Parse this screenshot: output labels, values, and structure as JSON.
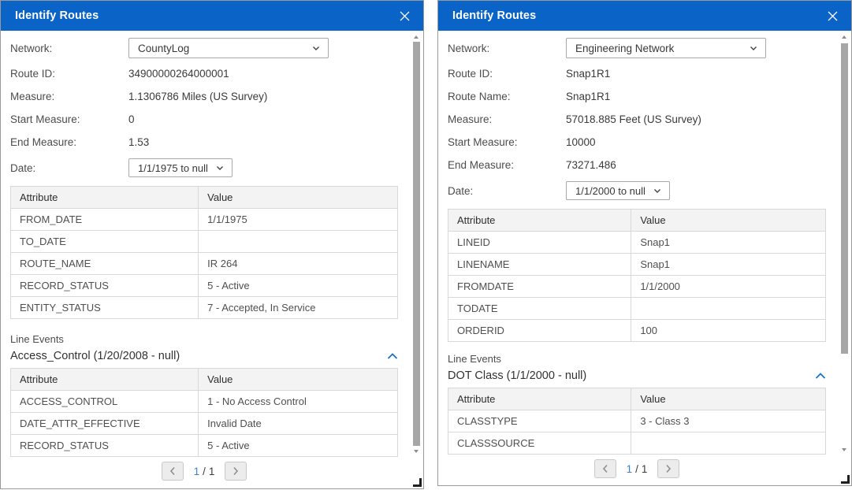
{
  "colors": {
    "titlebar_bg": "#0a64c8",
    "titlebar_text": "#ffffff",
    "accent_blue": "#1673c8",
    "page_current_blue": "#3b82d6",
    "label_text": "#4c4c4c",
    "table_header_bg": "#f3f3f3",
    "table_border": "#d8d8d8",
    "panel_border": "#9a9a9a",
    "scrollbar_thumb": "#a6a6a6"
  },
  "icons": {
    "close": "x",
    "chevron_down": "v-chevron",
    "chevron_up": "^-chevron",
    "chevron_left": "<-chevron",
    "chevron_right": ">-chevron",
    "resize_grip": "corner-L",
    "scroll_up": "small-triangle-up",
    "scroll_down": "small-triangle-down"
  },
  "panels": [
    {
      "title": "Identify Routes",
      "fields": [
        {
          "name": "network",
          "label": "Network:",
          "value": "CountyLog",
          "control": "select"
        },
        {
          "name": "route-id",
          "label": "Route ID:",
          "value": "34900000264000001"
        },
        {
          "name": "measure",
          "label": "Measure:",
          "value": "1.1306786 Miles (US Survey)"
        },
        {
          "name": "start-measure",
          "label": "Start Measure:",
          "value": "0"
        },
        {
          "name": "end-measure",
          "label": "End Measure:",
          "value": "1.53"
        },
        {
          "name": "date",
          "label": "Date:",
          "value": "1/1/1975 to null",
          "control": "select-small"
        }
      ],
      "route_table": {
        "headers": [
          "Attribute",
          "Value"
        ],
        "rows": [
          [
            "FROM_DATE",
            "1/1/1975"
          ],
          [
            "TO_DATE",
            ""
          ],
          [
            "ROUTE_NAME",
            "IR 264"
          ],
          [
            "RECORD_STATUS",
            "5 - Active"
          ],
          [
            "ENTITY_STATUS",
            "7 - Accepted, In Service"
          ]
        ]
      },
      "line_events": {
        "label": "Line Events",
        "section_title": "Access_Control (1/20/2008 - null)",
        "table": {
          "headers": [
            "Attribute",
            "Value"
          ],
          "rows": [
            [
              "ACCESS_CONTROL",
              "1 - No Access Control"
            ],
            [
              "DATE_ATTR_EFFECTIVE",
              "Invalid Date"
            ],
            [
              "RECORD_STATUS",
              "5 - Active"
            ]
          ]
        }
      },
      "pagination": {
        "current": "1",
        "separator": "/",
        "total": "1"
      }
    },
    {
      "title": "Identify Routes",
      "fields": [
        {
          "name": "network",
          "label": "Network:",
          "value": "Engineering Network",
          "control": "select"
        },
        {
          "name": "route-id",
          "label": "Route ID:",
          "value": "Snap1R1"
        },
        {
          "name": "route-name",
          "label": "Route Name:",
          "value": "Snap1R1"
        },
        {
          "name": "measure",
          "label": "Measure:",
          "value": "57018.885 Feet (US Survey)"
        },
        {
          "name": "start-measure",
          "label": "Start Measure:",
          "value": "10000"
        },
        {
          "name": "end-measure",
          "label": "End Measure:",
          "value": "73271.486"
        },
        {
          "name": "date",
          "label": "Date:",
          "value": "1/1/2000 to null",
          "control": "select-small"
        }
      ],
      "route_table": {
        "headers": [
          "Attribute",
          "Value"
        ],
        "rows": [
          [
            "LINEID",
            "Snap1"
          ],
          [
            "LINENAME",
            "Snap1"
          ],
          [
            "FROMDATE",
            "1/1/2000"
          ],
          [
            "TODATE",
            ""
          ],
          [
            "ORDERID",
            "100"
          ]
        ]
      },
      "line_events": {
        "label": "Line Events",
        "section_title": "DOT Class (1/1/2000 - null)",
        "table": {
          "headers": [
            "Attribute",
            "Value"
          ],
          "rows": [
            [
              "CLASSTYPE",
              "3 - Class 3"
            ],
            [
              "CLASSSOURCE",
              ""
            ]
          ]
        }
      },
      "pagination": {
        "current": "1",
        "separator": "/",
        "total": "1"
      }
    }
  ]
}
